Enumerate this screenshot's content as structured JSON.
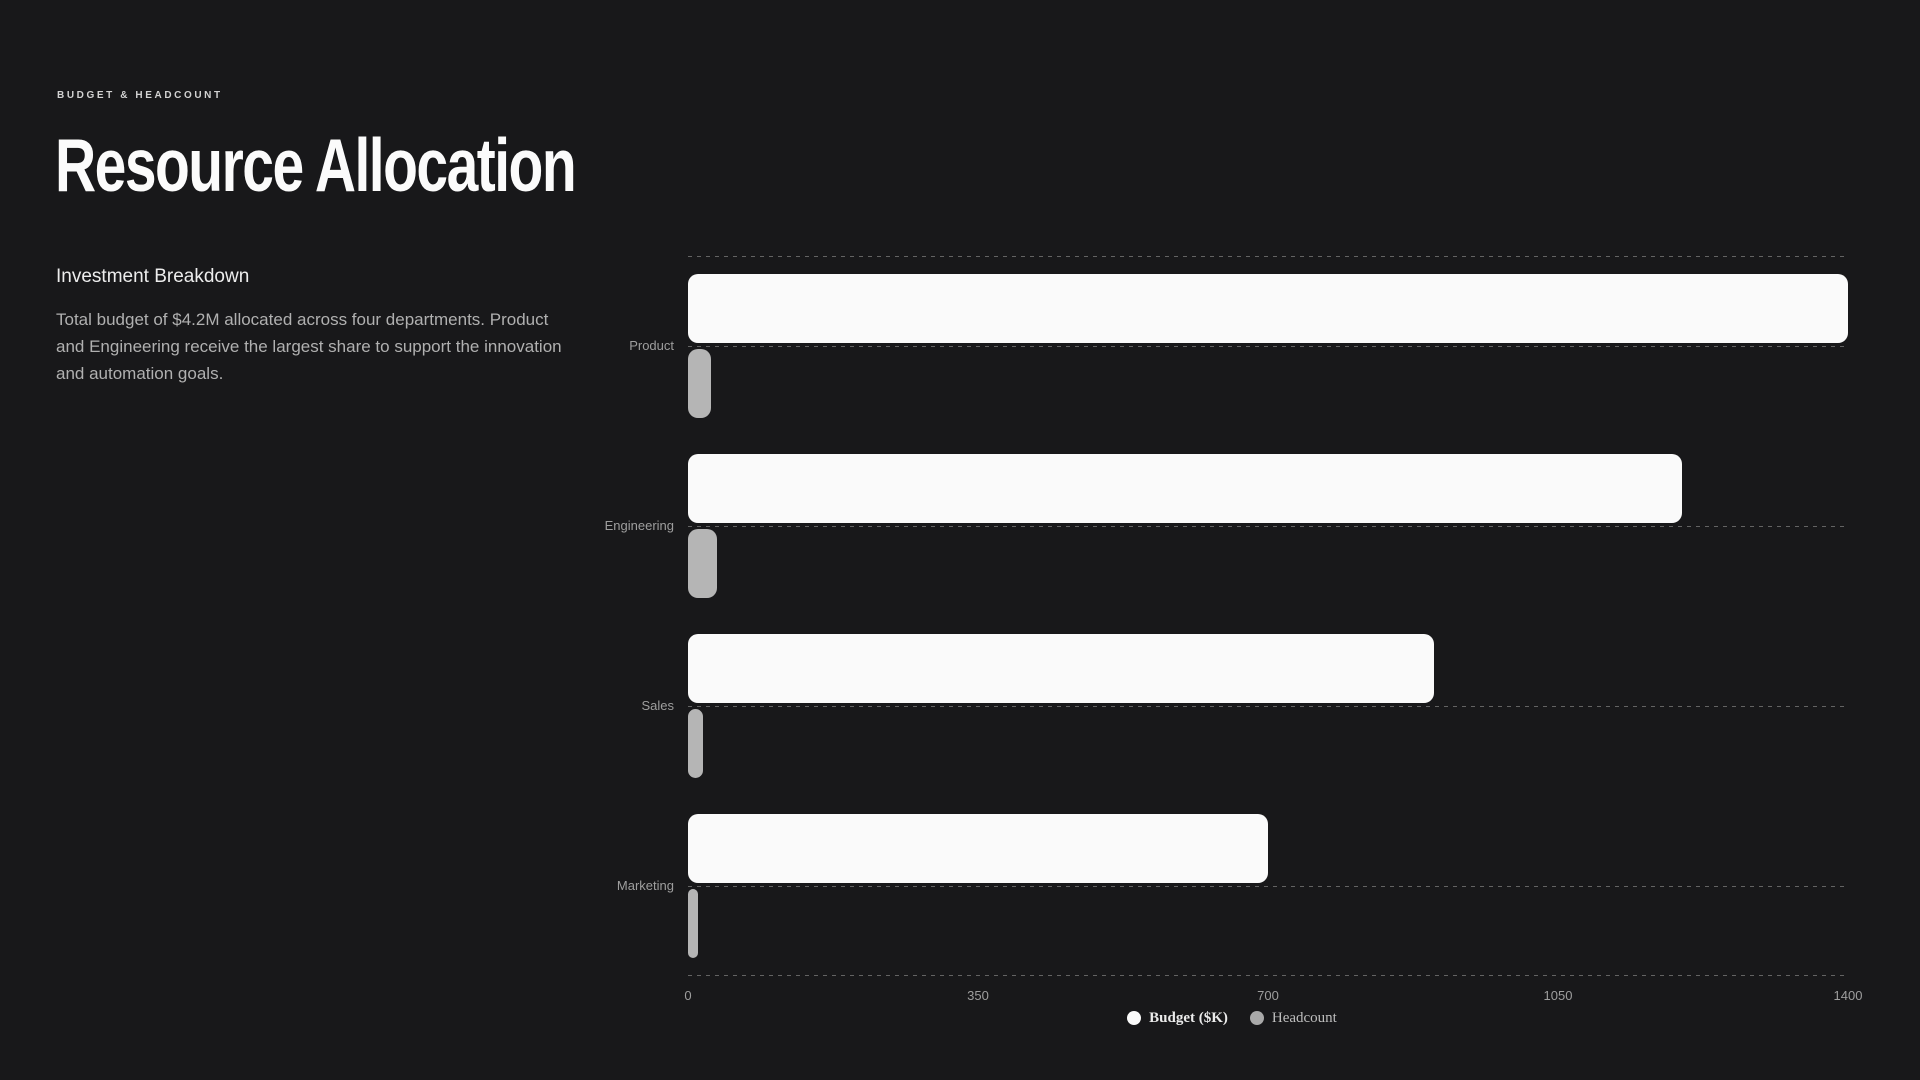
{
  "page": {
    "background": "#18181a"
  },
  "header": {
    "eyebrow": "BUDGET & HEADCOUNT",
    "title": "Resource Allocation"
  },
  "aside": {
    "heading": "Investment Breakdown",
    "body": "Total budget of $4.2M allocated across four departments. Product and Engineering receive the largest share to support the innovation and automation goals."
  },
  "chart_data": {
    "type": "bar",
    "orientation": "horizontal",
    "categories": [
      "Product",
      "Engineering",
      "Sales",
      "Marketing"
    ],
    "series": [
      {
        "name": "Budget ($K)",
        "color": "#fafafa",
        "values": [
          1400,
          1200,
          900,
          700
        ]
      },
      {
        "name": "Headcount",
        "color": "#b5b5b5",
        "values": [
          28,
          35,
          18,
          12
        ]
      }
    ],
    "xlim": [
      0,
      1400
    ],
    "x_ticks": [
      "0",
      "350",
      "700",
      "1050",
      "1400"
    ],
    "grid": "dashed horizontal lines at plot edges and category centers, no vertical gridlines",
    "legend_position": "bottom-center",
    "colors": {
      "grid_line": "#636363",
      "tick_label": "#9e9e9e",
      "category_label": "#9e9e9e",
      "legend_budget_text": "#ebebeb",
      "legend_headcount_text": "#bdbdbd"
    }
  }
}
